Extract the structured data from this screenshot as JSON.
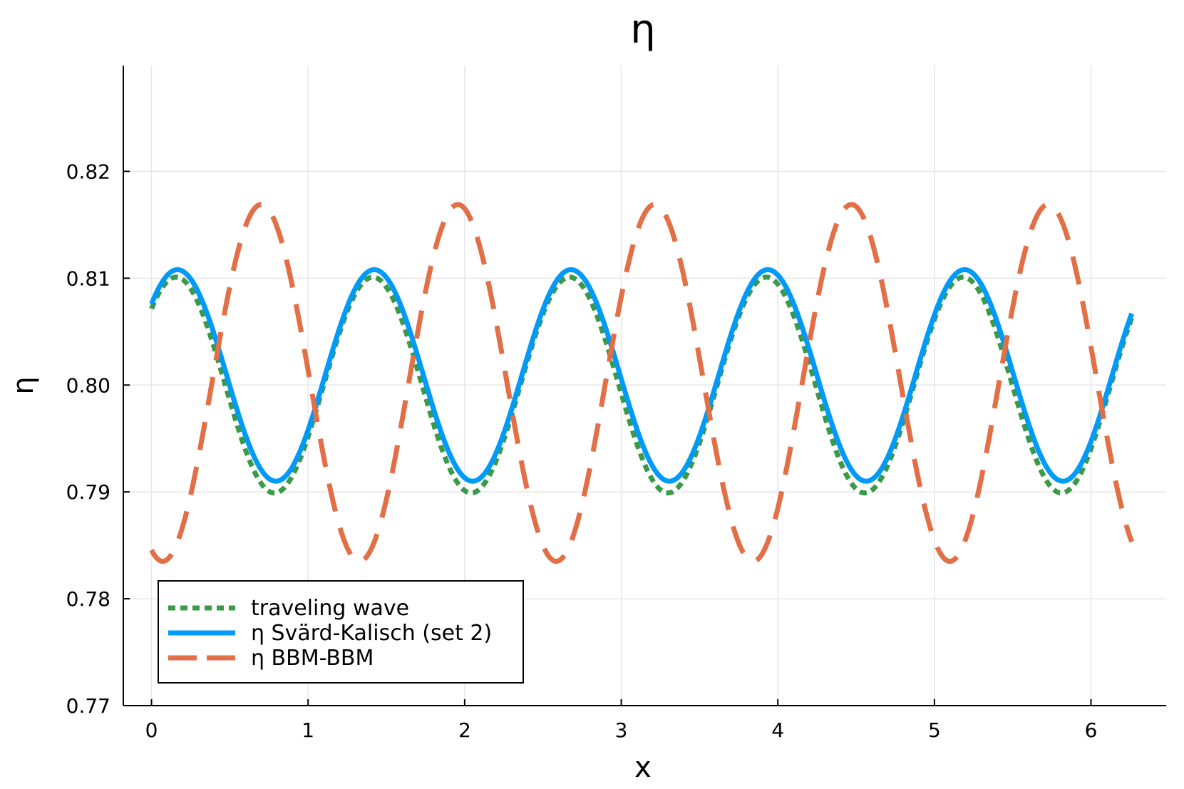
{
  "chart_data": {
    "type": "line",
    "title": "η",
    "xlabel": "x",
    "ylabel": "η",
    "xlim": [
      -0.18,
      6.48
    ],
    "ylim": [
      0.77,
      0.8299
    ],
    "xticks": [
      0,
      1,
      2,
      3,
      4,
      5,
      6
    ],
    "xtick_labels": [
      "0",
      "1",
      "2",
      "3",
      "4",
      "5",
      "6"
    ],
    "yticks": [
      0.77,
      0.78,
      0.79,
      0.8,
      0.81,
      0.82
    ],
    "ytick_labels": [
      "0.77",
      "0.78",
      "0.79",
      "0.80",
      "0.81",
      "0.82"
    ],
    "grid": true,
    "legend_position": "bottom-left",
    "series": [
      {
        "name": "traveling wave",
        "color": "#3a9a47",
        "style": "dotted",
        "x_start": 0.0,
        "x_end": 6.26,
        "mean": 0.8,
        "amplitude": 0.0101,
        "period": 1.2566,
        "peak_x": 0.157
      },
      {
        "name": "η Svärd-Kalisch (set 2)",
        "color": "#009af9",
        "style": "solid",
        "x_start": 0.0,
        "x_end": 6.26,
        "mean": 0.8009,
        "amplitude": 0.0099,
        "period": 1.2566,
        "peak_x": 0.166
      },
      {
        "name": "η BBM-BBM",
        "color": "#e26f46",
        "style": "dashed",
        "x_start": 0.0,
        "x_end": 6.26,
        "mean": 0.8002,
        "amplitude": 0.0167,
        "period": 1.2566,
        "peak_x": 0.7
      }
    ]
  }
}
